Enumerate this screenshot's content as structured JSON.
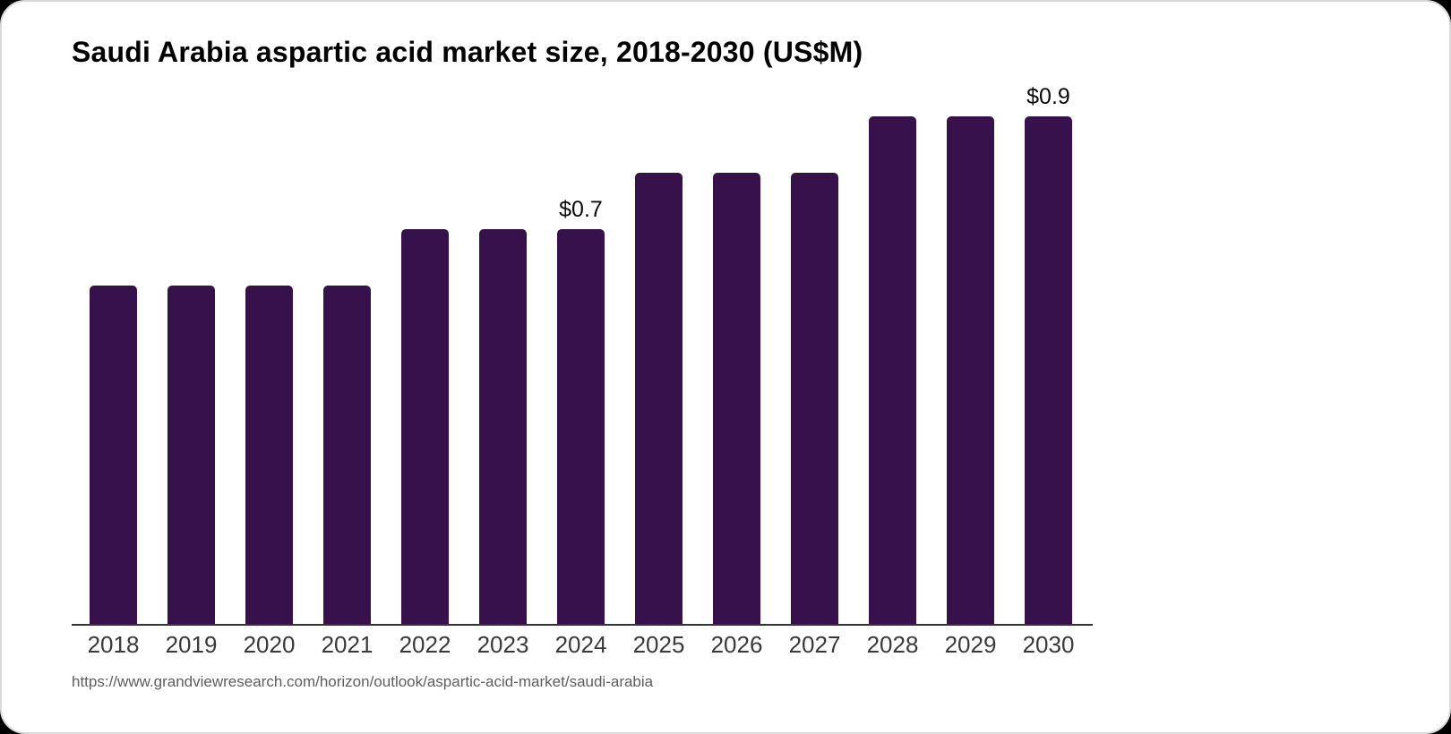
{
  "chart_data": {
    "type": "bar",
    "title": "Saudi Arabia aspartic acid market size, 2018-2030 (US$M)",
    "categories": [
      "2018",
      "2019",
      "2020",
      "2021",
      "2022",
      "2023",
      "2024",
      "2025",
      "2026",
      "2027",
      "2028",
      "2029",
      "2030"
    ],
    "values": [
      0.6,
      0.6,
      0.6,
      0.6,
      0.7,
      0.7,
      0.7,
      0.8,
      0.8,
      0.8,
      0.9,
      0.9,
      0.9
    ],
    "data_labels": {
      "2024": "$0.7",
      "2030": "$0.9"
    },
    "xlabel": "",
    "ylabel": "",
    "ylim": [
      0,
      0.96
    ],
    "grid": false,
    "legend": false,
    "bar_color": "#37114C",
    "axis_color": "#333333",
    "pixels_per_unit": 630
  },
  "source": {
    "url": "https://www.grandviewresearch.com/horizon/outlook/aspartic-acid-market/saudi-arabia"
  }
}
